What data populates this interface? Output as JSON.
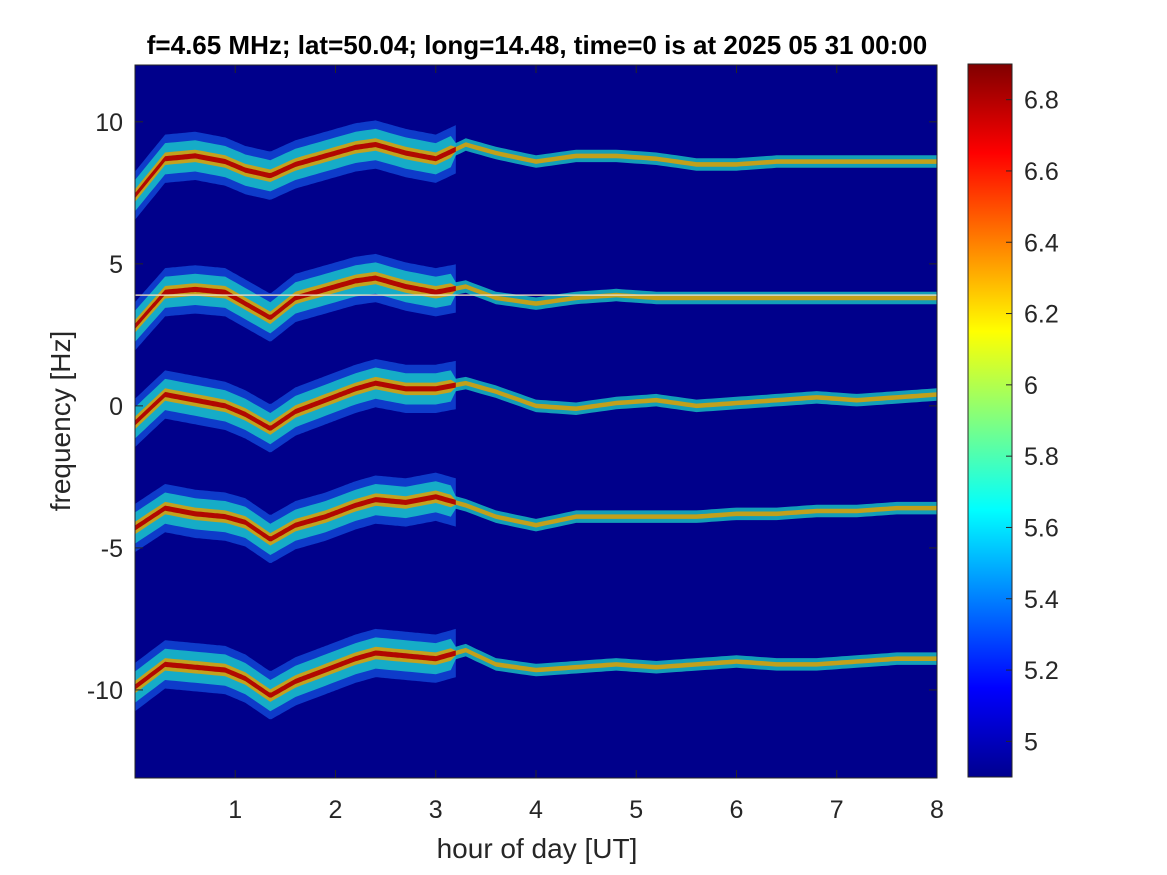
{
  "chart_data": {
    "type": "heatmap",
    "title": "f=4.65 MHz;  lat=50.04; long=14.48, time=0 is at 2025 05 31 00:00",
    "xlabel": "hour of day [UT]",
    "ylabel": "frequency [Hz]",
    "xlim": [
      0,
      8
    ],
    "ylim": [
      -13.1,
      12.0
    ],
    "x_ticks": [
      1,
      2,
      3,
      4,
      5,
      6,
      7,
      8
    ],
    "x_tick_labels": [
      "1",
      "2",
      "3",
      "4",
      "5",
      "6",
      "7",
      "8"
    ],
    "y_ticks": [
      10,
      5,
      0,
      -5,
      -10
    ],
    "y_tick_labels": [
      "10",
      "5",
      "0",
      "-5",
      "-10"
    ],
    "colormap": "jet",
    "clim": [
      4.9,
      6.9
    ],
    "colorbar_ticks": [
      6.8,
      6.6,
      6.4,
      6.2,
      6,
      5.8,
      5.6,
      5.4,
      5.2,
      5
    ],
    "colorbar_tick_labels": [
      "6.8",
      "6.6",
      "6.4",
      "6.2",
      "6",
      "5.8",
      "5.6",
      "5.4",
      "5.2",
      "5"
    ],
    "background_value": 4.95,
    "band_trace_hours": [
      0.0,
      0.3,
      0.6,
      0.9,
      1.1,
      1.35,
      1.6,
      1.9,
      2.2,
      2.4,
      2.7,
      3.0,
      3.3,
      3.6,
      4.0,
      4.4,
      4.8,
      5.2,
      5.6,
      6.0,
      6.4,
      6.8,
      7.2,
      7.6,
      8.0
    ],
    "bands": [
      {
        "name": "",
        "center": 8.8,
        "offsets": [
          -1.4,
          -0.1,
          0.0,
          -0.2,
          -0.5,
          -0.7,
          -0.3,
          0.0,
          0.3,
          0.4,
          0.1,
          -0.1,
          0.4,
          0.1,
          -0.2,
          0.0,
          0.0,
          -0.1,
          -0.3,
          -0.3,
          -0.2,
          -0.2,
          -0.2,
          -0.2,
          -0.2
        ],
        "extent_hours": 8.0
      },
      {
        "name": "",
        "center": 4.0,
        "offsets": [
          -1.2,
          0.0,
          0.1,
          0.0,
          -0.4,
          -0.9,
          -0.2,
          0.1,
          0.4,
          0.5,
          0.2,
          0.0,
          0.2,
          -0.2,
          -0.4,
          -0.2,
          -0.1,
          -0.2,
          -0.2,
          -0.2,
          -0.2,
          -0.2,
          -0.2,
          -0.2,
          -0.2
        ],
        "extent_hours": 8.0,
        "spike_line": 3.9
      },
      {
        "name": "",
        "center": 0.0,
        "offsets": [
          -0.6,
          0.4,
          0.2,
          0.0,
          -0.3,
          -0.8,
          -0.2,
          0.2,
          0.6,
          0.8,
          0.6,
          0.6,
          0.8,
          0.5,
          0.0,
          -0.1,
          0.1,
          0.2,
          0.0,
          0.1,
          0.2,
          0.3,
          0.2,
          0.3,
          0.4
        ],
        "extent_hours": 8.0
      },
      {
        "name": "",
        "center": -3.6,
        "offsets": [
          -0.7,
          0.0,
          -0.2,
          -0.3,
          -0.5,
          -1.1,
          -0.6,
          -0.3,
          0.1,
          0.3,
          0.2,
          0.4,
          0.1,
          -0.3,
          -0.6,
          -0.3,
          -0.3,
          -0.3,
          -0.3,
          -0.2,
          -0.2,
          -0.1,
          -0.1,
          0.0,
          0.0
        ],
        "extent_hours": 8.0
      },
      {
        "name": "",
        "center": -8.9,
        "offsets": [
          -1.0,
          -0.2,
          -0.3,
          -0.4,
          -0.7,
          -1.3,
          -0.8,
          -0.4,
          0.0,
          0.2,
          0.1,
          0.0,
          0.3,
          -0.2,
          -0.4,
          -0.3,
          -0.2,
          -0.3,
          -0.2,
          -0.1,
          -0.2,
          -0.2,
          -0.1,
          0.0,
          0.0
        ],
        "extent_hours": 8.0
      }
    ]
  }
}
